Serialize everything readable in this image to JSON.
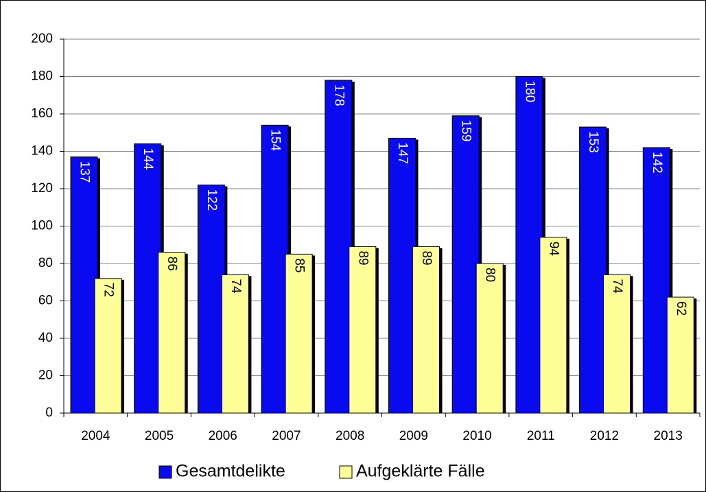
{
  "chart_data": {
    "type": "bar",
    "categories": [
      "2004",
      "2005",
      "2006",
      "2007",
      "2008",
      "2009",
      "2010",
      "2011",
      "2012",
      "2013"
    ],
    "series": [
      {
        "name": "Gesamtdelikte",
        "color": "#0a0af0",
        "values": [
          137,
          144,
          122,
          154,
          178,
          147,
          159,
          180,
          153,
          142
        ]
      },
      {
        "name": "Aufgeklärte Fälle",
        "color": "#ffff99",
        "values": [
          72,
          86,
          74,
          85,
          89,
          89,
          80,
          94,
          74,
          62
        ]
      }
    ],
    "ylim": [
      0,
      200
    ],
    "yticks": [
      0,
      20,
      40,
      60,
      80,
      100,
      120,
      140,
      160,
      180,
      200
    ],
    "grid": true,
    "legend": "bottom"
  }
}
